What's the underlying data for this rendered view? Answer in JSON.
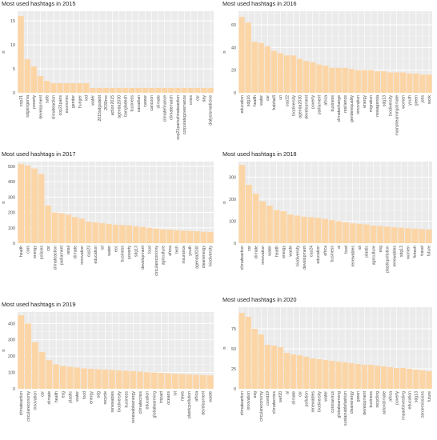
{
  "figure": {
    "panels": 6
  },
  "chart_data": [
    {
      "type": "bar",
      "title": "Most used hashtags in 2015",
      "xlabel": "",
      "ylabel": "n",
      "ylim": [
        0,
        17
      ],
      "yticks": [
        0,
        5,
        10,
        15
      ],
      "bar_color": "#fcd5a6",
      "panel_bg": "#ebebeb",
      "categories": [
        "cop21",
        "sdgsingenia",
        "poverty",
        "development",
        "safe",
        "climateaction",
        "cop21paris",
        "economic",
        "gender",
        "hunger",
        "ied",
        "water",
        "2015sdgsdebt",
        "2030nrc",
        "action2015",
        "agenda2030",
        "bangladesh",
        "business",
        "canadian",
        "career",
        "cancoon",
        "climate",
        "climatefinance",
        "climatemarch",
        "cop21parisclimateaction",
        "corporategovernance",
        "crisis",
        "csr",
        "day",
        "dialysismedicine"
      ],
      "values": [
        16,
        7,
        5.5,
        3.5,
        2.5,
        2,
        2,
        2,
        2,
        2,
        2,
        1,
        1,
        1,
        1,
        1,
        1,
        1,
        1,
        1,
        1,
        1,
        1,
        1,
        1,
        1,
        1,
        1,
        1,
        1
      ]
    },
    {
      "type": "bar",
      "title": "Most used hashtags in 2016",
      "xlabel": "",
      "ylabel": "n",
      "ylim": [
        0,
        72
      ],
      "yticks": [
        0,
        20,
        40,
        60
      ],
      "bar_color": "#fcd5a6",
      "panel_bg": "#ebebeb",
      "categories": [
        "education",
        "sdg16",
        "health",
        "water",
        "csr",
        "habitat3",
        "un",
        "cop22",
        "biodiversity",
        "agenda2030",
        "development",
        "poverty",
        "parliament",
        "africa",
        "business",
        "climatechange",
        "resilience",
        "genderequality",
        "innovation",
        "energy",
        "migration",
        "newagenda",
        "sdg13",
        "biodiversity",
        "mainstreamingclimate",
        "women",
        "youth",
        "green",
        "jobs",
        "work"
      ],
      "values": [
        67,
        62,
        45,
        44,
        41,
        37,
        35,
        33,
        33,
        30,
        28,
        27,
        25,
        24,
        22,
        22,
        22,
        21,
        20,
        20,
        20,
        19,
        19,
        18,
        18,
        18,
        17,
        17,
        16,
        16
      ]
    },
    {
      "type": "bar",
      "title": "Most used hashtags in 2017",
      "xlabel": "",
      "ylabel": "n",
      "ylim": [
        0,
        530
      ],
      "yticks": [
        0,
        100,
        200,
        300,
        400,
        500
      ],
      "bar_color": "#fcd5a6",
      "panel_bg": "#ebebeb",
      "categories": [
        "health",
        "cars",
        "energy",
        "policies",
        "csr",
        "climateaction",
        "parliament",
        "retail",
        "climate",
        "innovation",
        "cop23",
        "education",
        "iot",
        "water",
        "ecc",
        "business",
        "poverty",
        "sdg13",
        "development",
        "food",
        "circulareconomy",
        "agriculture",
        "africa",
        "tech",
        "insurance",
        "youth",
        "agenda2030",
        "cleanenergy",
        "biodiversity"
      ],
      "values": [
        515,
        505,
        485,
        450,
        245,
        200,
        195,
        185,
        170,
        160,
        140,
        135,
        130,
        125,
        120,
        118,
        115,
        110,
        105,
        100,
        95,
        90,
        88,
        85,
        82,
        80,
        78,
        75,
        72
      ]
    },
    {
      "type": "bar",
      "title": "Most used hashtags in 2018",
      "xlabel": "",
      "ylabel": "n",
      "ylim": [
        0,
        370
      ],
      "yticks": [
        0,
        100,
        200,
        300
      ],
      "bar_color": "#fcd5a6",
      "panel_bg": "#ebebeb",
      "categories": [
        "climateaction",
        "csr",
        "climate",
        "innovation",
        "water",
        "health",
        "energy",
        "waste",
        "biodiversity",
        "development",
        "cop24",
        "education",
        "africa",
        "business",
        "ai",
        "food",
        "renewables",
        "iot",
        "plastic",
        "agriculture",
        "esg",
        "plasticpollution",
        "renewables",
        "sdg13",
        "women",
        "fintech",
        "travel",
        "future"
      ],
      "values": [
        355,
        265,
        225,
        190,
        170,
        150,
        145,
        130,
        125,
        120,
        118,
        115,
        110,
        105,
        100,
        95,
        90,
        88,
        85,
        80,
        78,
        75,
        72,
        70,
        68,
        66,
        64,
        62
      ]
    },
    {
      "type": "bar",
      "title": "Most used hashtags in 2019",
      "xlabel": "",
      "ylabel": "n",
      "ylim": [
        0,
        470
      ],
      "yticks": [
        0,
        100,
        200,
        300,
        400
      ],
      "bar_color": "#fcd5a6",
      "panel_bg": "#ebebeb",
      "categories": [
        "climateaction",
        "circulareconomy",
        "innovation",
        "csr",
        "climate",
        "health",
        "esg",
        "plastic",
        "water",
        "food",
        "energy",
        "sdg",
        "recycle",
        "renewables",
        "biodiversity",
        "business",
        "renewableenergy",
        "climatecrisis",
        "education",
        "globalwarming",
        "impact",
        "oceans",
        "iot",
        "news",
        "plasticpollution",
        "africa",
        "development",
        "waste"
      ],
      "values": [
        450,
        400,
        285,
        225,
        175,
        150,
        140,
        135,
        130,
        125,
        122,
        120,
        118,
        115,
        112,
        110,
        108,
        105,
        102,
        100,
        98,
        95,
        92,
        90,
        88,
        86,
        84,
        82
      ]
    },
    {
      "type": "bar",
      "title": "Most used hashtags in 2020",
      "xlabel": "",
      "ylabel": "n",
      "ylim": [
        0,
        102
      ],
      "yticks": [
        0,
        25,
        50,
        75
      ],
      "bar_color": "#fcd5a6",
      "panel_bg": "#ebebeb",
      "categories": [
        "climateaction",
        "innovation",
        "esg",
        "circulareconomy",
        "covid19",
        "climatecrisis",
        "wef20",
        "ai",
        "climate",
        "csr",
        "pollution",
        "renewables",
        "biodiversity",
        "water",
        "coronavirus",
        "globalwarming",
        "sustainablefashion",
        "cleanenergy",
        "green",
        "development",
        "business",
        "recycling",
        "actonclimate",
        "africa",
        "poverty",
        "impactinvesting",
        "education",
        "sdg13",
        "zeroemissions",
        "future"
      ],
      "values": [
        95,
        90,
        75,
        68,
        55,
        54,
        52,
        45,
        43,
        42,
        40,
        38,
        37,
        36,
        35,
        34,
        33,
        32,
        31,
        30,
        30,
        29,
        28,
        27,
        26,
        26,
        25,
        24,
        23,
        22
      ]
    }
  ]
}
